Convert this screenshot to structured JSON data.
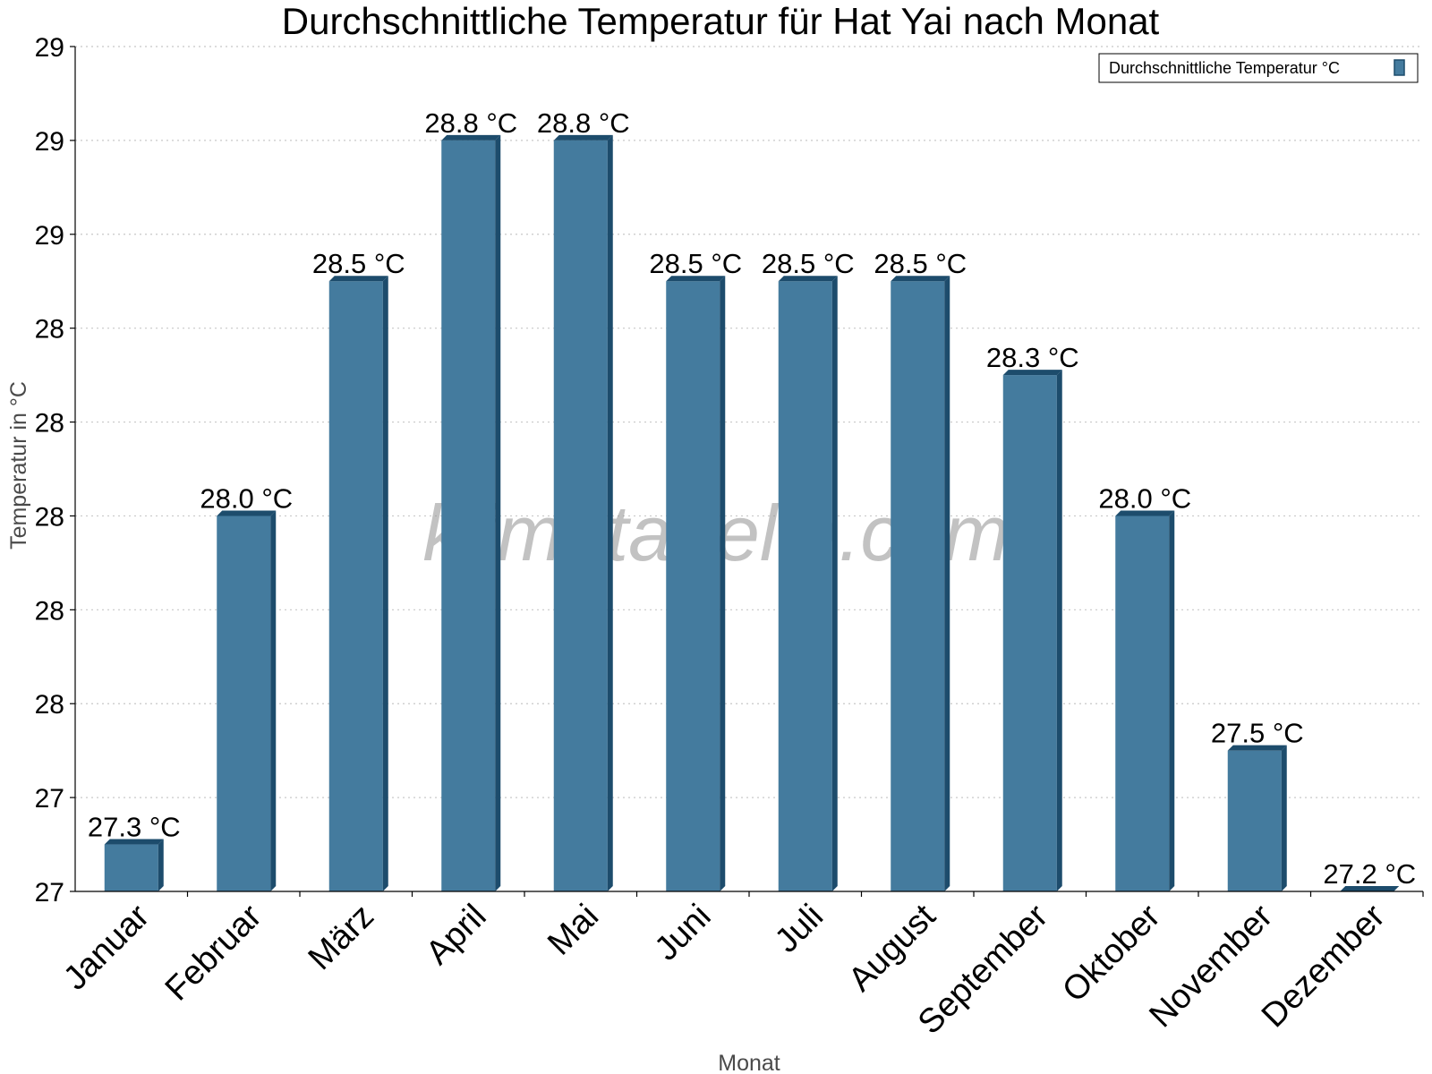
{
  "chart_data": {
    "type": "bar",
    "title": "Durchschnittliche Temperatur für Hat Yai nach Monat",
    "xlabel": "Monat",
    "ylabel": "Temperatur in °C",
    "categories": [
      "Januar",
      "Februar",
      "März",
      "April",
      "Mai",
      "Juni",
      "Juli",
      "August",
      "September",
      "Oktober",
      "November",
      "Dezember"
    ],
    "series": [
      {
        "name": "Durchschnittliche Temperatur °C",
        "values": [
          27.3,
          28.0,
          28.5,
          28.8,
          28.8,
          28.5,
          28.5,
          28.5,
          28.3,
          28.0,
          27.5,
          27.2
        ],
        "labels": [
          "27.3 °C",
          "28.0 °C",
          "28.5 °C",
          "28.8 °C",
          "28.8 °C",
          "28.5 °C",
          "28.5 °C",
          "28.5 °C",
          "28.3 °C",
          "28.0 °C",
          "27.5 °C",
          "27.2 °C"
        ]
      }
    ],
    "ylim": [
      27.2,
      29.0
    ],
    "yticks": [
      27.2,
      27.4,
      27.6,
      27.8,
      28.0,
      28.2,
      28.4,
      28.6,
      28.8,
      29.0
    ],
    "ytick_labels": [
      "27",
      "27",
      "28",
      "28",
      "28",
      "28",
      "28",
      "29",
      "29",
      "29"
    ],
    "grid": true,
    "legend_position": "top-right",
    "colors": {
      "bar": "#447b9e",
      "bar_side": "#1d4c6c",
      "bar_top": "#1d4c6c",
      "grid": "#c8c8c8"
    },
    "watermark": "klimatabelle.com"
  }
}
